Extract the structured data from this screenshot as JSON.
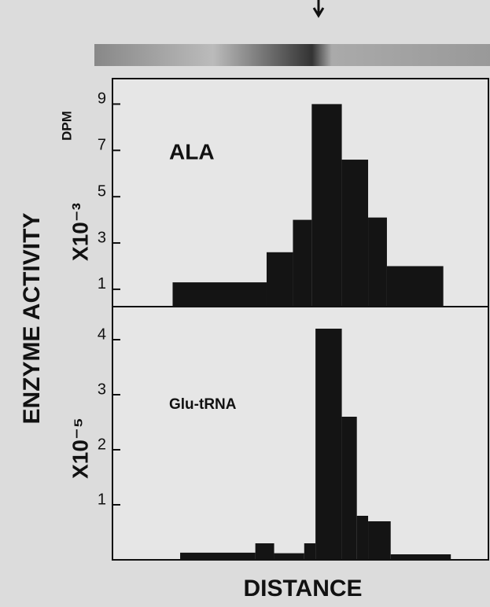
{
  "chart_data": [
    {
      "type": "histogram",
      "ylabel": "ENZYME ACTIVITY",
      "ylabel_unit": "DPM",
      "scale_label": "X10⁻³",
      "annotation": "ALA",
      "bins": [
        16,
        41,
        48,
        53,
        61,
        68,
        73,
        88
      ],
      "values": [
        1.3,
        2.6,
        4.0,
        9.0,
        6.6,
        4.1,
        2.0
      ],
      "color": "#141414",
      "xlim": [
        0,
        100
      ],
      "ylim": [
        0.25,
        10.1
      ],
      "yticks": [
        1,
        3,
        5,
        7,
        9
      ]
    },
    {
      "type": "histogram",
      "scale_label": "X10⁻⁵",
      "annotation": "Glu-tRNA",
      "xlabel": "DISTANCE",
      "bins": [
        18,
        38,
        43,
        51,
        54,
        61,
        65,
        68,
        74,
        90
      ],
      "values": [
        0.13,
        0.3,
        0.12,
        0.3,
        4.2,
        2.6,
        0.8,
        0.7,
        0.1
      ],
      "color": "#141414",
      "xlim": [
        0,
        100
      ],
      "ylim": [
        0,
        4.6
      ],
      "yticks": [
        1,
        2,
        3,
        4
      ]
    }
  ]
}
